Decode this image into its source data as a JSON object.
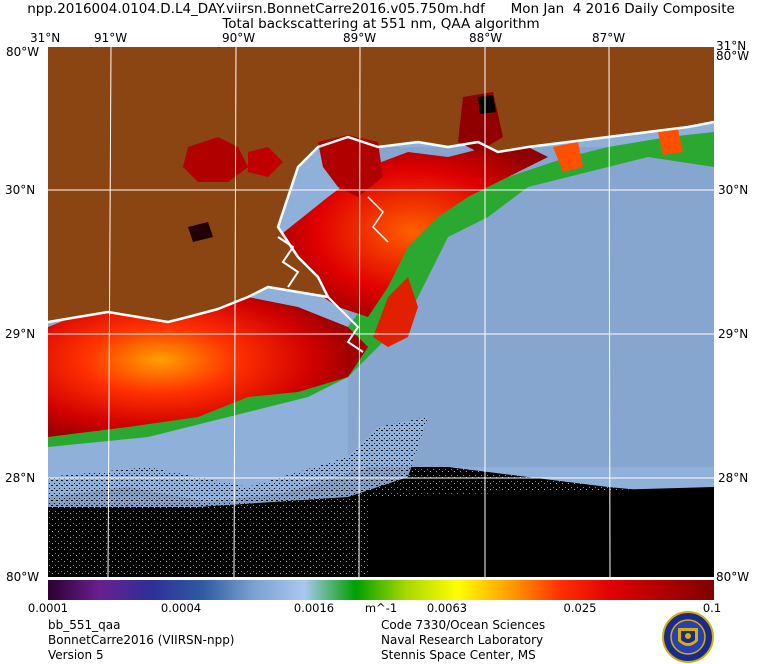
{
  "header": {
    "line1": "npp.2016004.0104.D.L4_DAY.viirsn.BonnetCarre2016.v05.750m.hdf      Mon Jan  4 2016 Daily Composite",
    "line2": "Total backscattering at 551 nm, QAA algorithm"
  },
  "map": {
    "lon_labels": [
      "91°W",
      "90°W",
      "89°W",
      "88°W",
      "87°W"
    ],
    "lat_labels": [
      "30°N",
      "29°N",
      "28°N"
    ],
    "corner_top": "31°N",
    "corner_bottom": "80°W",
    "corner_left_top": "80°W",
    "colors": {
      "land": "#8b4513",
      "coast": "#ffffff",
      "grid": "#ffffff",
      "no_data": "#000000",
      "ocean_low": "#8fb0d8"
    }
  },
  "colorbar": {
    "ticks": [
      "0.0001",
      "0.0004",
      "0.0016",
      "0.0063",
      "0.025",
      "0.1"
    ],
    "unit": "m^-1",
    "colors": [
      "#2b0030",
      "#6a1f8f",
      "#2f2f9a",
      "#2f5aa0",
      "#7aa0d0",
      "#a8c8f0",
      "#00a000",
      "#a8d800",
      "#ffff00",
      "#ffa000",
      "#ff3000",
      "#e00000",
      "#b00000",
      "#800000"
    ]
  },
  "info_left": {
    "product": "bb_551_qaa",
    "dataset": "BonnetCarre2016 (VIIRSN-npp)",
    "version": "Version 5"
  },
  "info_right": {
    "line1": "Code 7330/Ocean Sciences",
    "line2": "Naval Research Laboratory",
    "line3": "Stennis Space Center, MS"
  }
}
